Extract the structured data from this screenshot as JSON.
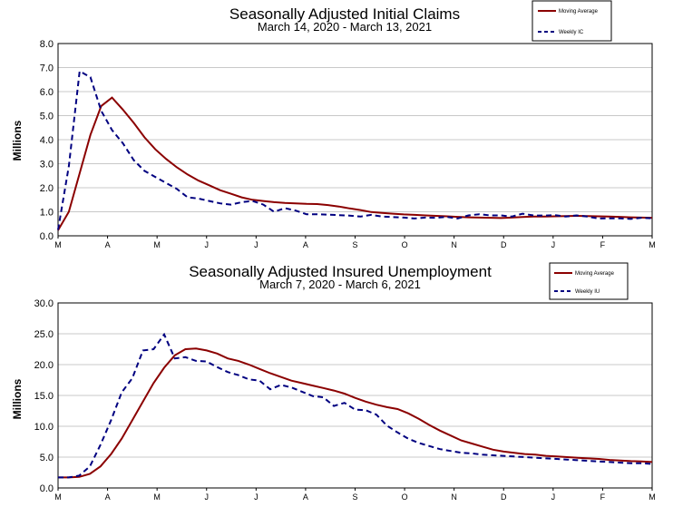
{
  "colors": {
    "moving_average": "#8b0000",
    "weekly": "#000080",
    "grid": "#c8c8c8"
  },
  "chart_data": [
    {
      "type": "line",
      "title": "Seasonally Adjusted Initial Claims",
      "subtitle": "March 14, 2020 - March 13, 2021",
      "ylabel": "Millions",
      "ylim": [
        0,
        8
      ],
      "yticks": [
        "0.0",
        "1.0",
        "2.0",
        "3.0",
        "4.0",
        "5.0",
        "6.0",
        "7.0",
        "8.0"
      ],
      "xticks": [
        "M",
        "A",
        "M",
        "J",
        "J",
        "A",
        "S",
        "O",
        "N",
        "D",
        "J",
        "F",
        "M"
      ],
      "legend_position": "top-right",
      "series": [
        {
          "name": "Moving Average",
          "style": "solid",
          "values": [
            0.23,
            1.0,
            2.6,
            4.2,
            5.4,
            5.75,
            5.25,
            4.7,
            4.1,
            3.6,
            3.2,
            2.85,
            2.55,
            2.3,
            2.1,
            1.9,
            1.75,
            1.6,
            1.5,
            1.45,
            1.4,
            1.37,
            1.35,
            1.33,
            1.32,
            1.28,
            1.22,
            1.14,
            1.07,
            0.99,
            0.95,
            0.92,
            0.89,
            0.87,
            0.85,
            0.83,
            0.81,
            0.79,
            0.77,
            0.76,
            0.75,
            0.74,
            0.76,
            0.78,
            0.8,
            0.8,
            0.81,
            0.82,
            0.83,
            0.82,
            0.81,
            0.8,
            0.79,
            0.77,
            0.76,
            0.75
          ]
        },
        {
          "name": "Weekly IC",
          "style": "dashed",
          "values": [
            0.25,
            2.9,
            6.85,
            6.6,
            5.2,
            4.4,
            3.85,
            3.15,
            2.7,
            2.45,
            2.2,
            1.95,
            1.6,
            1.55,
            1.45,
            1.35,
            1.3,
            1.4,
            1.45,
            1.3,
            1.0,
            1.15,
            1.05,
            0.9,
            0.9,
            0.88,
            0.86,
            0.84,
            0.8,
            0.87,
            0.8,
            0.78,
            0.76,
            0.72,
            0.76,
            0.75,
            0.79,
            0.72,
            0.85,
            0.9,
            0.85,
            0.85,
            0.8,
            0.92,
            0.85,
            0.84,
            0.86,
            0.8,
            0.85,
            0.8,
            0.72,
            0.73,
            0.73,
            0.7,
            0.75,
            0.73
          ]
        }
      ]
    },
    {
      "type": "line",
      "title": "Seasonally Adjusted Insured Unemployment",
      "subtitle": "March 7, 2020 - March 6, 2021",
      "ylabel": "Millions",
      "ylim": [
        0,
        30
      ],
      "yticks": [
        "0.0",
        "5.0",
        "10.0",
        "15.0",
        "20.0",
        "25.0",
        "30.0"
      ],
      "xticks": [
        "M",
        "A",
        "M",
        "J",
        "J",
        "A",
        "S",
        "O",
        "N",
        "D",
        "J",
        "F",
        "M"
      ],
      "legend_position": "top-right",
      "series": [
        {
          "name": "Moving Average",
          "style": "solid",
          "values": [
            1.7,
            1.7,
            1.8,
            2.3,
            3.5,
            5.5,
            8.0,
            11.0,
            14.0,
            17.0,
            19.5,
            21.5,
            22.5,
            22.6,
            22.3,
            21.8,
            21.0,
            20.6,
            20.0,
            19.3,
            18.6,
            18.0,
            17.4,
            17.0,
            16.6,
            16.2,
            15.8,
            15.3,
            14.6,
            14.0,
            13.5,
            13.1,
            12.8,
            12.1,
            11.2,
            10.2,
            9.3,
            8.5,
            7.7,
            7.2,
            6.7,
            6.2,
            5.9,
            5.7,
            5.5,
            5.4,
            5.2,
            5.1,
            5.0,
            4.9,
            4.8,
            4.7,
            4.55,
            4.45,
            4.35,
            4.3,
            4.2
          ]
        },
        {
          "name": "Weekly IU",
          "style": "dashed",
          "values": [
            1.7,
            1.7,
            2.0,
            3.5,
            7.0,
            11.0,
            15.5,
            17.8,
            22.3,
            22.5,
            24.9,
            21.0,
            21.2,
            20.6,
            20.5,
            19.6,
            18.8,
            18.3,
            17.6,
            17.4,
            16.0,
            16.7,
            16.3,
            15.6,
            14.9,
            14.7,
            13.3,
            13.8,
            12.7,
            12.6,
            11.9,
            10.1,
            9.0,
            8.0,
            7.3,
            6.8,
            6.3,
            6.0,
            5.7,
            5.6,
            5.4,
            5.3,
            5.2,
            5.1,
            5.0,
            4.9,
            4.8,
            4.7,
            4.6,
            4.5,
            4.4,
            4.3,
            4.2,
            4.1,
            4.0,
            4.0,
            3.9
          ]
        }
      ]
    }
  ]
}
